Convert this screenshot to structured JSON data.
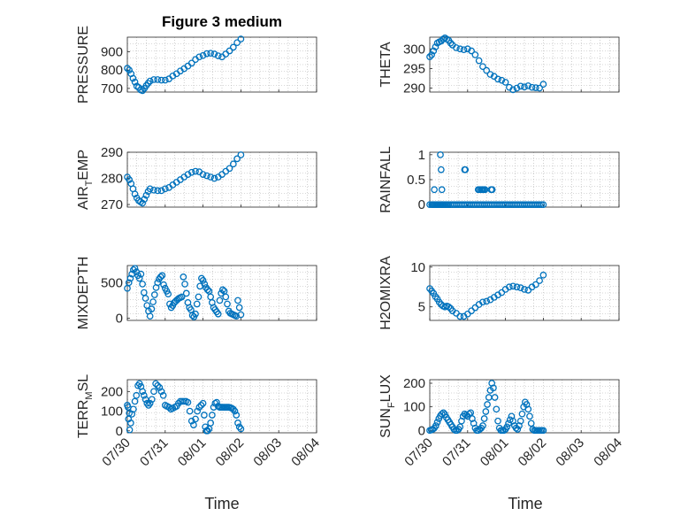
{
  "figure": {
    "title": "Figure 3 medium",
    "xlabel": "Time",
    "marker_color": "#0072BD",
    "axis_color": "#262626",
    "grid_color": "#b0b0b0"
  },
  "chart_data": [
    {
      "type": "scatter",
      "ylabel": "PRESSURE",
      "ylabel_sub": null,
      "yticks": [
        "700",
        "800",
        "900"
      ],
      "ylim": [
        680,
        980
      ],
      "xlim": [
        "07/30",
        "08/03"
      ],
      "xticks": [],
      "grid": "dotted",
      "marker": "open-circle",
      "x_days": [
        0.0,
        0.05,
        0.1,
        0.15,
        0.2,
        0.25,
        0.3,
        0.35,
        0.4,
        0.45,
        0.5,
        0.55,
        0.6,
        0.7,
        0.8,
        0.9,
        1.0,
        1.1,
        1.2,
        1.3,
        1.4,
        1.5,
        1.6,
        1.7,
        1.8,
        1.9,
        2.0,
        2.1,
        2.2,
        2.3,
        2.4,
        2.5,
        2.6,
        2.7,
        2.8,
        2.9,
        3.0
      ],
      "values": [
        810,
        800,
        780,
        755,
        735,
        712,
        705,
        692,
        688,
        700,
        715,
        728,
        740,
        748,
        748,
        745,
        745,
        752,
        768,
        780,
        795,
        808,
        822,
        838,
        858,
        872,
        880,
        890,
        892,
        888,
        878,
        872,
        888,
        905,
        925,
        950,
        970
      ]
    },
    {
      "type": "scatter",
      "ylabel": "THETA",
      "ylabel_sub": null,
      "yticks": [
        "290",
        "295",
        "300"
      ],
      "ylim": [
        289,
        303
      ],
      "xlim": [
        "07/30",
        "08/03"
      ],
      "xticks": [],
      "grid": "dotted",
      "marker": "open-circle",
      "x_days": [
        0.0,
        0.05,
        0.1,
        0.15,
        0.2,
        0.25,
        0.3,
        0.35,
        0.4,
        0.45,
        0.5,
        0.55,
        0.6,
        0.7,
        0.8,
        0.9,
        1.0,
        1.1,
        1.2,
        1.3,
        1.4,
        1.5,
        1.6,
        1.7,
        1.8,
        1.9,
        2.0,
        2.1,
        2.2,
        2.3,
        2.4,
        2.5,
        2.6,
        2.7,
        2.8,
        2.9,
        3.0
      ],
      "values": [
        298,
        298.5,
        299.5,
        300.5,
        301.5,
        301.8,
        302,
        302.5,
        302.8,
        302.5,
        302.2,
        301.5,
        301,
        300.3,
        300,
        299.8,
        300,
        299.5,
        298.5,
        297,
        295.5,
        294.5,
        293.5,
        293,
        292.3,
        292,
        291.5,
        290.2,
        289.6,
        290,
        290.5,
        290.3,
        290.6,
        290.2,
        290.1,
        290,
        291
      ]
    },
    {
      "type": "scatter",
      "ylabel": "AIR",
      "ylabel_sub": "T",
      "ylabel_tail": "EMP",
      "yticks": [
        "270",
        "280",
        "290"
      ],
      "ylim": [
        269,
        290
      ],
      "xlim": [
        "07/30",
        "08/03"
      ],
      "xticks": [],
      "grid": "dotted",
      "marker": "open-circle",
      "x_days": [
        0.0,
        0.05,
        0.1,
        0.15,
        0.2,
        0.25,
        0.3,
        0.35,
        0.4,
        0.45,
        0.5,
        0.55,
        0.6,
        0.7,
        0.8,
        0.9,
        1.0,
        1.1,
        1.2,
        1.3,
        1.4,
        1.5,
        1.6,
        1.7,
        1.8,
        1.9,
        2.0,
        2.1,
        2.2,
        2.3,
        2.4,
        2.5,
        2.6,
        2.7,
        2.8,
        2.9,
        3.0
      ],
      "values": [
        280.5,
        279.5,
        278,
        276,
        274,
        272.5,
        271.5,
        271,
        270.5,
        272,
        273.5,
        275,
        276,
        275.5,
        275.3,
        275.3,
        276,
        276.5,
        277.5,
        278.5,
        279.5,
        280.5,
        281.5,
        282.3,
        282.7,
        282.5,
        281.5,
        281,
        280.5,
        280,
        280.5,
        281.5,
        282.7,
        283.8,
        285.5,
        287.5,
        289
      ]
    },
    {
      "type": "scatter",
      "ylabel": "RAINFALL",
      "ylabel_sub": null,
      "yticks": [
        "0",
        "0.5",
        "1"
      ],
      "ylim": [
        -0.05,
        1.05
      ],
      "xlim": [
        "07/30",
        "08/03"
      ],
      "xticks": [],
      "grid": "dotted",
      "marker": "open-circle",
      "x_days": [
        0.0,
        0.05,
        0.08,
        0.11,
        0.14,
        0.17,
        0.2,
        0.23,
        0.26,
        0.29,
        0.32,
        0.35,
        0.38,
        0.41,
        0.44,
        0.47,
        0.5,
        0.55,
        0.6,
        0.65,
        0.7,
        0.75,
        0.8,
        0.85,
        0.9,
        0.95,
        1.0,
        1.05,
        1.1,
        1.15,
        1.2,
        1.25,
        1.3,
        1.35,
        1.4,
        1.45,
        1.5,
        1.55,
        1.6,
        1.65,
        1.7,
        1.75,
        1.8,
        1.85,
        1.9,
        1.95,
        2.0,
        2.05,
        2.1,
        2.15,
        2.2,
        2.25,
        2.3,
        2.35,
        2.4,
        2.45,
        2.5,
        2.55,
        2.6,
        2.65,
        2.7,
        2.75,
        2.8,
        2.85,
        2.9,
        2.95,
        3.0,
        0.12,
        0.28,
        0.3,
        0.32,
        0.33,
        0.92,
        0.94,
        1.28,
        1.31,
        1.35,
        1.38,
        1.4,
        1.43,
        1.46,
        1.62,
        1.65
      ],
      "values": [
        0,
        0,
        0,
        0,
        0,
        0,
        0,
        0,
        0,
        0,
        0,
        0,
        0,
        0,
        0,
        0,
        0,
        0,
        0,
        0,
        0,
        0,
        0,
        0,
        0,
        0,
        0,
        0,
        0,
        0,
        0,
        0,
        0,
        0,
        0,
        0,
        0,
        0,
        0,
        0,
        0,
        0,
        0,
        0,
        0,
        0,
        0,
        0,
        0,
        0,
        0,
        0,
        0,
        0,
        0,
        0,
        0,
        0,
        0,
        0,
        0,
        0,
        0,
        0,
        0,
        0,
        0,
        0.3,
        1,
        0.7,
        0.3,
        0,
        0.7,
        0.7,
        0.3,
        0.3,
        0.3,
        0.3,
        0.3,
        0.3,
        0.3,
        0.3,
        0.3
      ]
    },
    {
      "type": "scatter",
      "ylabel": "MIXDEPTH",
      "ylabel_sub": null,
      "yticks": [
        "0",
        "500"
      ],
      "ylim": [
        -30,
        740
      ],
      "xlim": [
        "07/30",
        "08/03"
      ],
      "xticks": [],
      "grid": "dotted",
      "marker": "open-circle",
      "x_days": [
        0.0,
        0.04,
        0.08,
        0.12,
        0.16,
        0.2,
        0.24,
        0.28,
        0.32,
        0.36,
        0.4,
        0.44,
        0.48,
        0.52,
        0.56,
        0.6,
        0.64,
        0.68,
        0.72,
        0.76,
        0.8,
        0.84,
        0.88,
        0.92,
        0.96,
        1.0,
        1.04,
        1.08,
        1.12,
        1.16,
        1.2,
        1.24,
        1.28,
        1.32,
        1.36,
        1.4,
        1.44,
        1.48,
        1.52,
        1.56,
        1.6,
        1.64,
        1.68,
        1.72,
        1.76,
        1.8,
        1.84,
        1.88,
        1.92,
        1.96,
        2.0,
        2.04,
        2.08,
        2.12,
        2.16,
        2.2,
        2.24,
        2.28,
        2.32,
        2.36,
        2.4,
        2.44,
        2.48,
        2.52,
        2.56,
        2.6,
        2.64,
        2.68,
        2.72,
        2.76,
        2.8,
        2.84,
        2.88,
        2.92,
        2.96,
        3.0
      ],
      "values": [
        420,
        500,
        560,
        620,
        680,
        700,
        650,
        600,
        560,
        620,
        480,
        360,
        280,
        180,
        100,
        30,
        130,
        230,
        330,
        430,
        500,
        550,
        580,
        600,
        470,
        420,
        380,
        340,
        200,
        150,
        180,
        220,
        240,
        260,
        280,
        290,
        300,
        580,
        480,
        350,
        220,
        150,
        120,
        40,
        20,
        60,
        200,
        300,
        450,
        560,
        530,
        480,
        430,
        400,
        380,
        300,
        220,
        150,
        120,
        90,
        60,
        250,
        350,
        400,
        380,
        300,
        200,
        100,
        70,
        60,
        50,
        40,
        30,
        250,
        150,
        50
      ]
    },
    {
      "type": "scatter",
      "ylabel": "H2OMIXRA",
      "ylabel_sub": null,
      "yticks": [
        "5",
        "10"
      ],
      "ylim": [
        3.3,
        10.2
      ],
      "xlim": [
        "07/30",
        "08/03"
      ],
      "xticks": [],
      "grid": "dotted",
      "marker": "open-circle",
      "x_days": [
        0.0,
        0.05,
        0.1,
        0.15,
        0.2,
        0.25,
        0.3,
        0.35,
        0.4,
        0.45,
        0.5,
        0.55,
        0.6,
        0.7,
        0.8,
        0.9,
        1.0,
        1.1,
        1.2,
        1.3,
        1.4,
        1.5,
        1.6,
        1.7,
        1.8,
        1.9,
        2.0,
        2.1,
        2.2,
        2.3,
        2.4,
        2.5,
        2.6,
        2.7,
        2.8,
        2.9,
        3.0
      ],
      "values": [
        7.3,
        7,
        6.7,
        6.3,
        6,
        5.6,
        5.3,
        5.1,
        5,
        5.1,
        5,
        4.8,
        4.5,
        4.2,
        3.8,
        3.8,
        4.1,
        4.5,
        4.9,
        5.3,
        5.6,
        5.7,
        5.9,
        6.2,
        6.5,
        6.8,
        7.2,
        7.5,
        7.6,
        7.5,
        7.4,
        7.2,
        7.1,
        7.5,
        7.8,
        8.3,
        9
      ]
    },
    {
      "type": "scatter",
      "ylabel": "TERR",
      "ylabel_sub": "M",
      "ylabel_tail": "SL",
      "yticks": [
        "0",
        "100",
        "200"
      ],
      "ylim": [
        -10,
        260
      ],
      "xlim": [
        "07/30",
        "08/04"
      ],
      "xticks": [
        "07/30",
        "07/31",
        "08/01",
        "08/02",
        "08/03",
        "08/04"
      ],
      "grid": "dotted",
      "marker": "open-circle",
      "x_days": [
        0.0,
        0.03,
        0.06,
        0.09,
        0.12,
        0.16,
        0.2,
        0.24,
        0.28,
        0.32,
        0.36,
        0.4,
        0.44,
        0.48,
        0.52,
        0.56,
        0.6,
        0.65,
        0.7,
        0.75,
        0.8,
        0.85,
        0.9,
        0.95,
        1.0,
        1.05,
        1.1,
        1.15,
        1.2,
        1.25,
        1.3,
        1.35,
        1.4,
        1.45,
        1.5,
        1.55,
        1.6,
        1.65,
        1.7,
        1.75,
        1.8,
        1.85,
        1.9,
        1.95,
        2.0,
        2.03,
        2.06,
        2.09,
        2.12,
        2.16,
        2.2,
        2.24,
        2.28,
        2.32,
        2.36,
        2.4,
        2.44,
        2.48,
        2.52,
        2.56,
        2.6,
        2.64,
        2.68,
        2.72,
        2.76,
        2.8,
        2.84,
        2.88,
        2.92,
        2.96,
        3.0,
        0.02,
        0.05
      ],
      "values": [
        130,
        60,
        5,
        40,
        85,
        110,
        150,
        180,
        230,
        240,
        225,
        200,
        180,
        160,
        140,
        130,
        140,
        160,
        200,
        240,
        230,
        220,
        200,
        180,
        130,
        125,
        120,
        110,
        115,
        120,
        125,
        140,
        150,
        150,
        150,
        150,
        145,
        100,
        50,
        30,
        60,
        100,
        120,
        130,
        140,
        80,
        20,
        0,
        0,
        10,
        40,
        80,
        120,
        140,
        145,
        125,
        120,
        120,
        120,
        120,
        120,
        120,
        120,
        118,
        115,
        110,
        100,
        80,
        40,
        20,
        10,
        120,
        90
      ]
    },
    {
      "type": "scatter",
      "ylabel": "SUN",
      "ylabel_sub": "F",
      "ylabel_tail": "LUX",
      "yticks": [
        "0",
        "100",
        "200"
      ],
      "ylim": [
        -10,
        215
      ],
      "xlim": [
        "07/30",
        "08/04"
      ],
      "xticks": [
        "07/30",
        "07/31",
        "08/01",
        "08/02",
        "08/03",
        "08/04"
      ],
      "grid": "dotted",
      "marker": "open-circle",
      "x_days": [
        0.0,
        0.04,
        0.08,
        0.12,
        0.16,
        0.2,
        0.24,
        0.28,
        0.32,
        0.36,
        0.4,
        0.44,
        0.48,
        0.52,
        0.56,
        0.6,
        0.64,
        0.68,
        0.72,
        0.76,
        0.8,
        0.84,
        0.88,
        0.92,
        0.96,
        1.0,
        1.04,
        1.08,
        1.12,
        1.16,
        1.2,
        1.24,
        1.28,
        1.32,
        1.36,
        1.4,
        1.44,
        1.48,
        1.52,
        1.56,
        1.6,
        1.64,
        1.68,
        1.72,
        1.76,
        1.8,
        1.84,
        1.88,
        1.92,
        1.96,
        2.0,
        2.04,
        2.08,
        2.12,
        2.16,
        2.2,
        2.24,
        2.28,
        2.32,
        2.36,
        2.4,
        2.44,
        2.48,
        2.52,
        2.56,
        2.6,
        2.64,
        2.68,
        2.72,
        2.76,
        2.8,
        2.84,
        2.88,
        2.92,
        2.96,
        3.0
      ],
      "values": [
        0,
        2,
        5,
        10,
        20,
        35,
        50,
        62,
        70,
        75,
        68,
        55,
        45,
        35,
        25,
        15,
        5,
        0,
        0,
        5,
        15,
        40,
        60,
        70,
        65,
        60,
        70,
        75,
        50,
        30,
        10,
        0,
        0,
        5,
        10,
        20,
        50,
        80,
        110,
        140,
        170,
        200,
        180,
        140,
        90,
        40,
        10,
        0,
        0,
        0,
        5,
        15,
        30,
        45,
        60,
        40,
        20,
        10,
        5,
        20,
        40,
        70,
        100,
        120,
        110,
        90,
        60,
        30,
        5,
        0,
        0,
        0,
        0,
        0,
        0,
        0
      ]
    }
  ]
}
